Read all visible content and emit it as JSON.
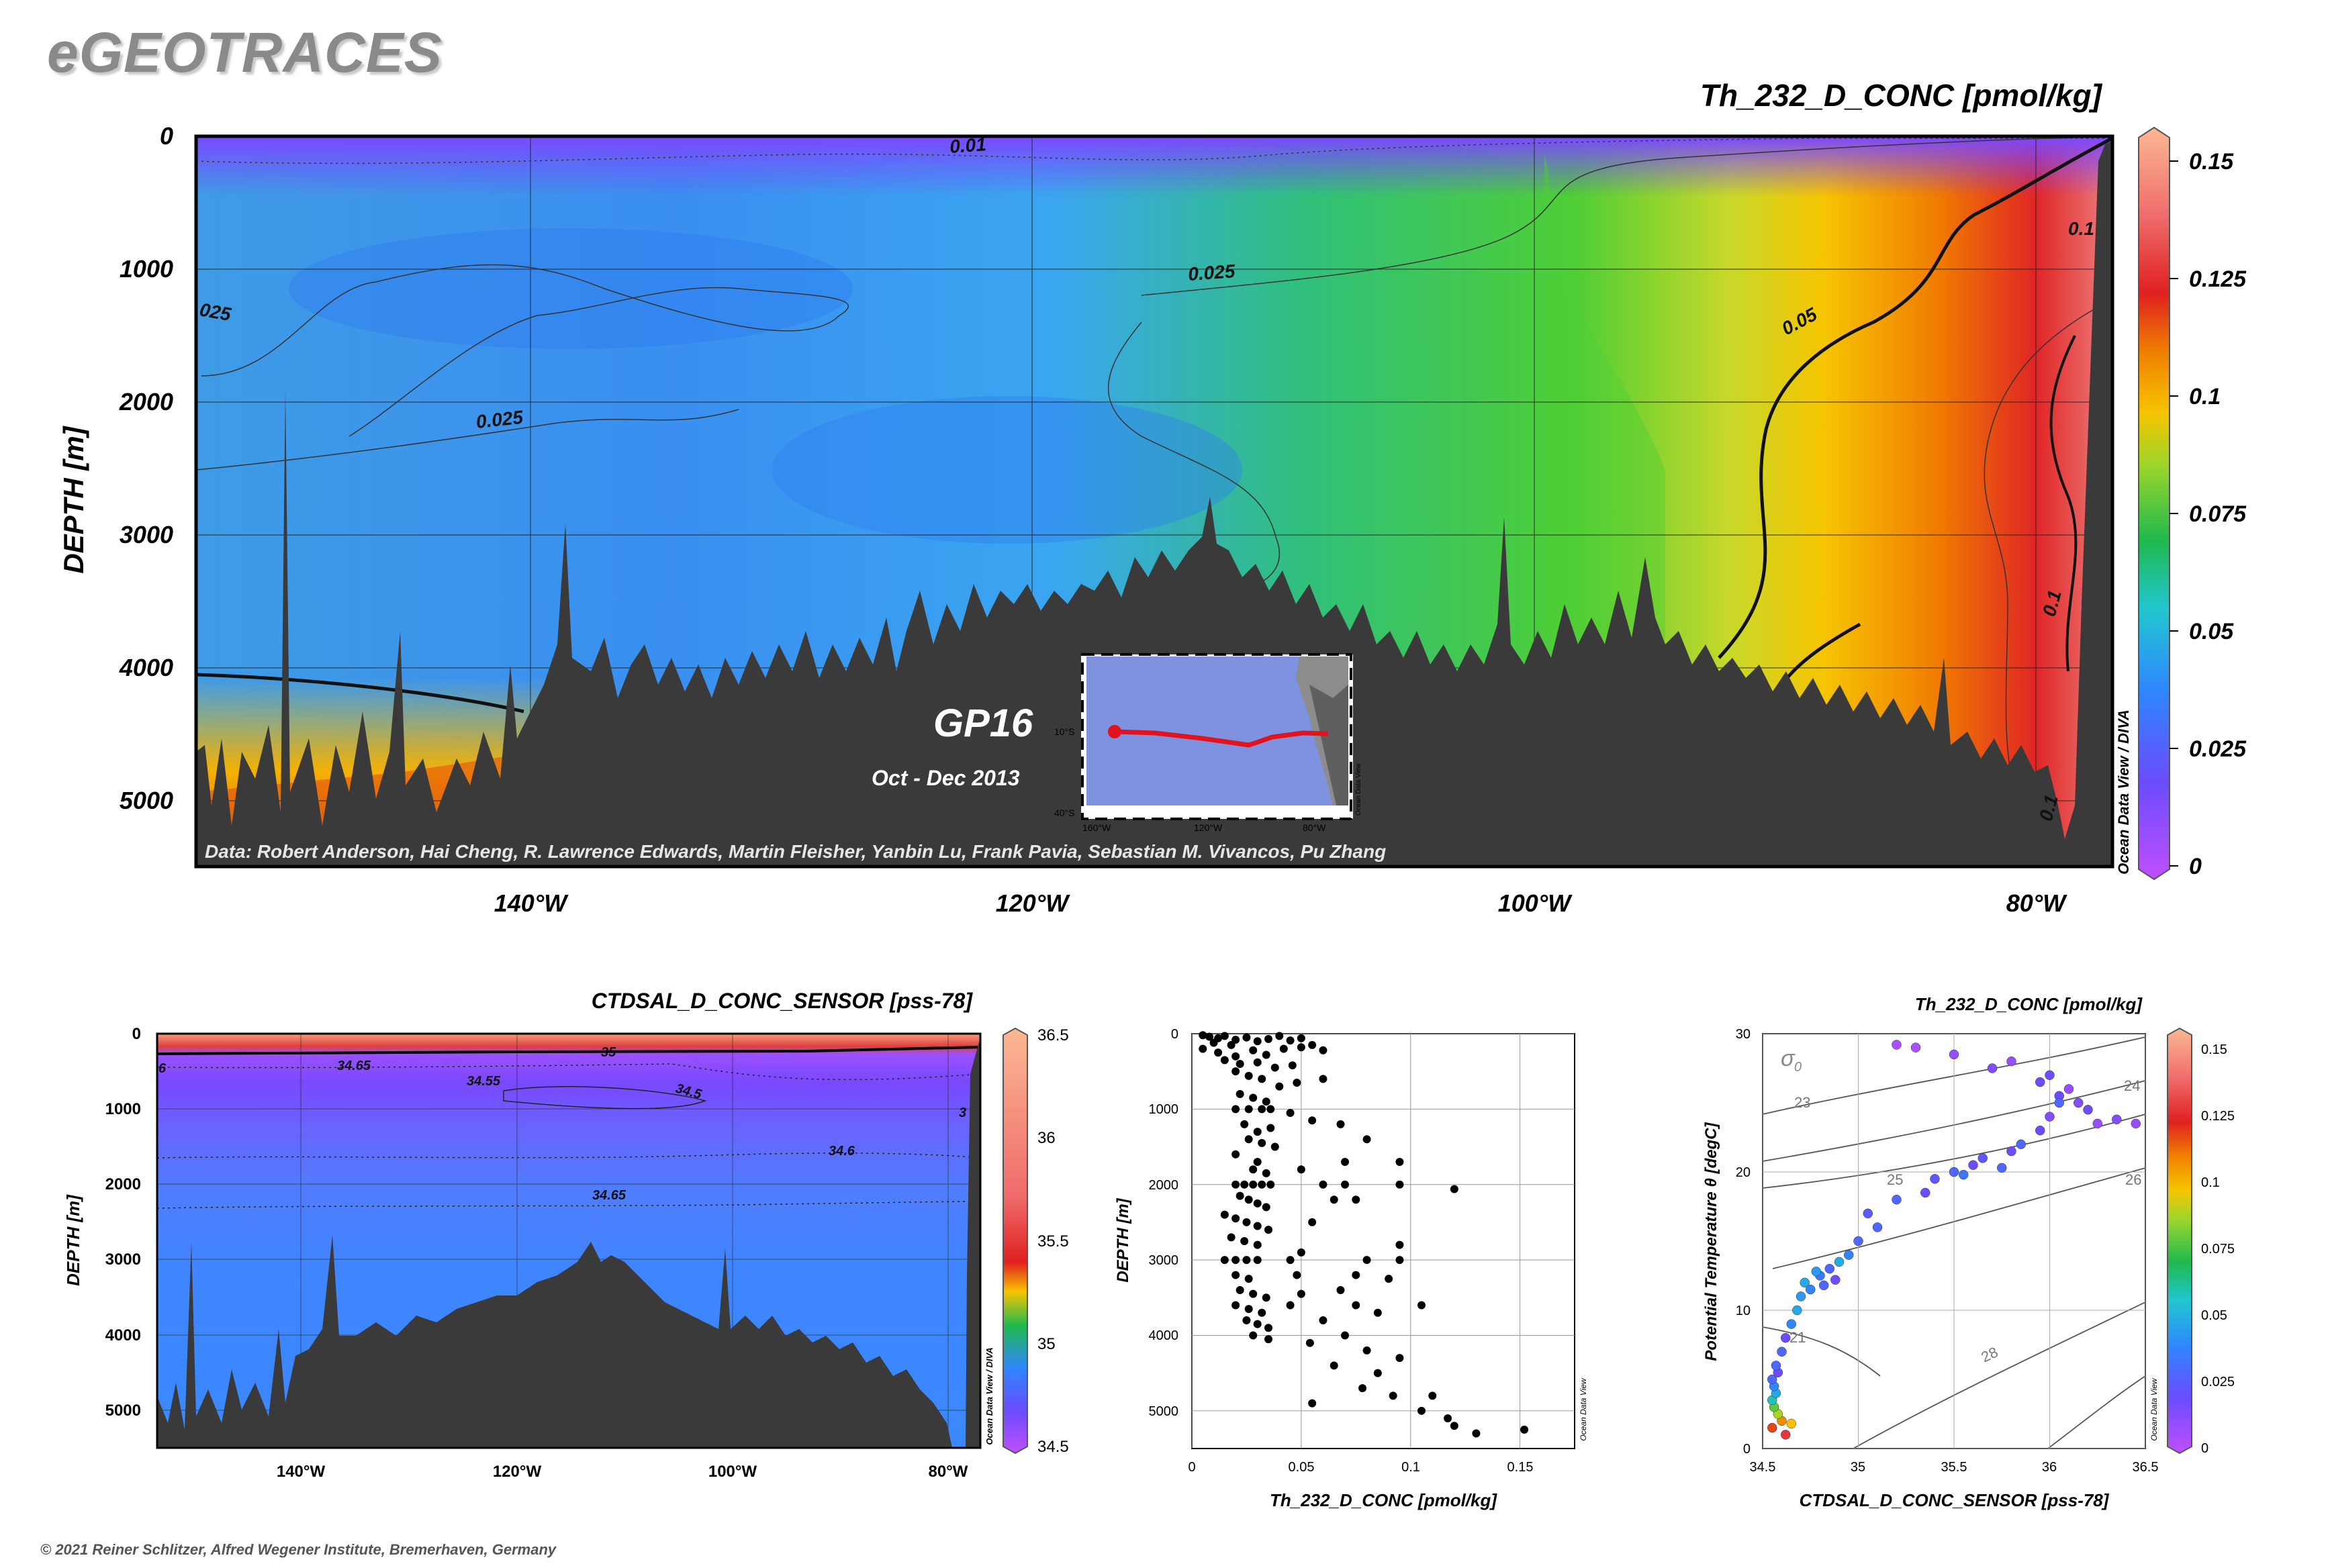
{
  "header": {
    "logo": "eGEOTRACES"
  },
  "footer": {
    "copyright": "© 2021 Reiner Schlitzer, Alfred Wegener Institute, Bremerhaven, Germany"
  },
  "colors": {
    "background": "#ffffff",
    "logo": "#8a8a8a",
    "seafloor": "#3a3a3a",
    "cruise_track": "#e0141e",
    "frame": "#000000"
  },
  "chart_data": [
    {
      "type": "heatmap",
      "title": "Th_232_D_CONC [pmol/kg]",
      "ylabel": "DEPTH [m]",
      "xlabel": "",
      "x_ticks": [
        "140°W",
        "120°W",
        "100°W",
        "80°W"
      ],
      "x_tick_values": [
        -140,
        -120,
        -100,
        -80
      ],
      "xlim": [
        -153.5,
        -77.5
      ],
      "y_ticks": [
        "0",
        "1000",
        "2000",
        "3000",
        "4000",
        "5000"
      ],
      "y_tick_values": [
        0,
        1000,
        2000,
        3000,
        4000,
        5000
      ],
      "ylim": [
        0,
        5500
      ],
      "colorbar": {
        "ticks": [
          "0",
          "0.025",
          "0.05",
          "0.075",
          "0.1",
          "0.125",
          "0.15"
        ],
        "values": [
          0,
          0.025,
          0.05,
          0.075,
          0.1,
          0.125,
          0.15
        ],
        "range": [
          0,
          0.16
        ]
      },
      "contour_labels": [
        "0.01",
        "0.025",
        "0.025",
        "025",
        "0.05",
        "0.1",
        "0.1",
        "0.1"
      ],
      "section_label": "GP16",
      "date_label": "Oct - Dec 2013",
      "credits": "Data: Robert Anderson, Hai Cheng, R. Lawrence Edwards, Martin Fleisher, Yanbin Lu, Frank Pavia, Sebastian M. Vivancos, Pu Zhang",
      "side_label": "Ocean Data View / DIVA",
      "inset": {
        "lat_ticks": [
          "10°S",
          "40°S"
        ],
        "lon_ticks": [
          "160°W",
          "120°W",
          "80°W"
        ],
        "credit": "Ocean Data View"
      }
    },
    {
      "type": "heatmap",
      "title": "CTDSAL_D_CONC_SENSOR [pss-78]",
      "ylabel": "DEPTH [m]",
      "xlabel": "",
      "x_ticks": [
        "140°W",
        "120°W",
        "100°W",
        "80°W"
      ],
      "x_tick_values": [
        -140,
        -120,
        -100,
        -80
      ],
      "xlim": [
        -153.5,
        -77.5
      ],
      "y_ticks": [
        "0",
        "1000",
        "2000",
        "3000",
        "4000",
        "5000"
      ],
      "y_tick_values": [
        0,
        1000,
        2000,
        3000,
        4000,
        5000
      ],
      "ylim": [
        0,
        5500
      ],
      "colorbar": {
        "ticks": [
          "34.5",
          "35",
          "35.5",
          "36",
          "36.5"
        ],
        "values": [
          34.5,
          35,
          35.5,
          36,
          36.5
        ],
        "range": [
          34.5,
          36.5
        ]
      },
      "contour_labels": [
        "34.65",
        "34.55",
        "34.5",
        "34.6",
        "34.65",
        "35",
        "3",
        "6"
      ],
      "side_label": "Ocean Data View / DIVA"
    },
    {
      "type": "scatter",
      "title": "",
      "xlabel": "Th_232_D_CONC [pmol/kg]",
      "ylabel": "DEPTH [m]",
      "xlim": [
        0,
        0.175
      ],
      "ylim": [
        0,
        5500
      ],
      "x_ticks": [
        "0",
        "0.05",
        "0.1",
        "0.15"
      ],
      "x_tick_values": [
        0,
        0.05,
        0.1,
        0.15
      ],
      "y_ticks": [
        "0",
        "1000",
        "2000",
        "3000",
        "4000",
        "5000"
      ],
      "y_tick_values": [
        0,
        1000,
        2000,
        3000,
        4000,
        5000
      ],
      "side_label": "Ocean Data View",
      "points": [
        [
          0.005,
          20
        ],
        [
          0.008,
          40
        ],
        [
          0.012,
          60
        ],
        [
          0.015,
          30
        ],
        [
          0.02,
          80
        ],
        [
          0.01,
          120
        ],
        [
          0.018,
          150
        ],
        [
          0.025,
          50
        ],
        [
          0.03,
          100
        ],
        [
          0.035,
          70
        ],
        [
          0.04,
          30
        ],
        [
          0.045,
          90
        ],
        [
          0.05,
          60
        ],
        [
          0.005,
          200
        ],
        [
          0.012,
          250
        ],
        [
          0.02,
          300
        ],
        [
          0.028,
          220
        ],
        [
          0.034,
          280
        ],
        [
          0.042,
          200
        ],
        [
          0.05,
          180
        ],
        [
          0.055,
          150
        ],
        [
          0.06,
          220
        ],
        [
          0.015,
          350
        ],
        [
          0.022,
          400
        ],
        [
          0.03,
          380
        ],
        [
          0.038,
          450
        ],
        [
          0.046,
          420
        ],
        [
          0.02,
          500
        ],
        [
          0.026,
          560
        ],
        [
          0.032,
          600
        ],
        [
          0.04,
          700
        ],
        [
          0.048,
          650
        ],
        [
          0.06,
          600
        ],
        [
          0.022,
          800
        ],
        [
          0.028,
          850
        ],
        [
          0.034,
          900
        ],
        [
          0.02,
          1000
        ],
        [
          0.026,
          1000
        ],
        [
          0.032,
          1000
        ],
        [
          0.036,
          1000
        ],
        [
          0.045,
          1050
        ],
        [
          0.055,
          1150
        ],
        [
          0.068,
          1200
        ],
        [
          0.08,
          1400
        ],
        [
          0.024,
          1200
        ],
        [
          0.03,
          1300
        ],
        [
          0.036,
          1250
        ],
        [
          0.026,
          1400
        ],
        [
          0.032,
          1450
        ],
        [
          0.038,
          1500
        ],
        [
          0.02,
          1600
        ],
        [
          0.03,
          1700
        ],
        [
          0.07,
          1700
        ],
        [
          0.095,
          1700
        ],
        [
          0.028,
          1800
        ],
        [
          0.034,
          1850
        ],
        [
          0.05,
          1800
        ],
        [
          0.02,
          2000
        ],
        [
          0.024,
          2000
        ],
        [
          0.028,
          2000
        ],
        [
          0.032,
          2000
        ],
        [
          0.036,
          2000
        ],
        [
          0.06,
          2000
        ],
        [
          0.07,
          2000
        ],
        [
          0.095,
          2000
        ],
        [
          0.12,
          2060
        ],
        [
          0.022,
          2150
        ],
        [
          0.026,
          2200
        ],
        [
          0.03,
          2250
        ],
        [
          0.034,
          2300
        ],
        [
          0.065,
          2200
        ],
        [
          0.075,
          2200
        ],
        [
          0.015,
          2400
        ],
        [
          0.02,
          2450
        ],
        [
          0.025,
          2500
        ],
        [
          0.03,
          2550
        ],
        [
          0.035,
          2600
        ],
        [
          0.055,
          2500
        ],
        [
          0.018,
          2700
        ],
        [
          0.024,
          2750
        ],
        [
          0.03,
          2800
        ],
        [
          0.095,
          2800
        ],
        [
          0.05,
          2900
        ],
        [
          0.015,
          3000
        ],
        [
          0.02,
          3000
        ],
        [
          0.025,
          3000
        ],
        [
          0.03,
          3000
        ],
        [
          0.045,
          3000
        ],
        [
          0.08,
          3000
        ],
        [
          0.095,
          3000
        ],
        [
          0.02,
          3200
        ],
        [
          0.026,
          3250
        ],
        [
          0.048,
          3200
        ],
        [
          0.075,
          3200
        ],
        [
          0.09,
          3250
        ],
        [
          0.022,
          3400
        ],
        [
          0.028,
          3450
        ],
        [
          0.034,
          3500
        ],
        [
          0.05,
          3450
        ],
        [
          0.068,
          3400
        ],
        [
          0.02,
          3600
        ],
        [
          0.026,
          3650
        ],
        [
          0.032,
          3700
        ],
        [
          0.045,
          3600
        ],
        [
          0.075,
          3600
        ],
        [
          0.025,
          3800
        ],
        [
          0.03,
          3850
        ],
        [
          0.035,
          3900
        ],
        [
          0.06,
          3800
        ],
        [
          0.085,
          3700
        ],
        [
          0.105,
          3600
        ],
        [
          0.028,
          4000
        ],
        [
          0.035,
          4050
        ],
        [
          0.054,
          4100
        ],
        [
          0.07,
          4000
        ],
        [
          0.08,
          4200
        ],
        [
          0.095,
          4300
        ],
        [
          0.065,
          4400
        ],
        [
          0.085,
          4500
        ],
        [
          0.078,
          4700
        ],
        [
          0.092,
          4800
        ],
        [
          0.055,
          4900
        ],
        [
          0.11,
          4800
        ],
        [
          0.105,
          5000
        ],
        [
          0.117,
          5100
        ],
        [
          0.12,
          5200
        ],
        [
          0.13,
          5300
        ],
        [
          0.152,
          5250
        ]
      ]
    },
    {
      "type": "scatter",
      "title": "Th_232_D_CONC [pmol/kg]",
      "xlabel": "CTDSAL_D_CONC_SENSOR [pss-78]",
      "ylabel": "Potential Temperature θ [degC]",
      "xlim": [
        34.5,
        36.5
      ],
      "ylim": [
        0,
        30
      ],
      "x_ticks": [
        "34.5",
        "35",
        "35.5",
        "36",
        "36.5"
      ],
      "x_tick_values": [
        34.5,
        35,
        35.5,
        36,
        36.5
      ],
      "y_ticks": [
        "0",
        "10",
        "20",
        "30"
      ],
      "y_tick_values": [
        0,
        10,
        20,
        30
      ],
      "isopycnal_symbol": "σ",
      "isopycnal_subscript": "0",
      "isopycnal_labels": [
        "21",
        "23",
        "24",
        "25",
        "26",
        "28"
      ],
      "colorbar": {
        "ticks": [
          "0",
          "0.025",
          "0.05",
          "0.075",
          "0.1",
          "0.125",
          "0.15"
        ],
        "values": [
          0,
          0.025,
          0.05,
          0.075,
          0.1,
          0.125,
          0.15
        ],
        "range": [
          0,
          0.16
        ]
      },
      "side_label": "Ocean Data View",
      "points": [
        [
          34.55,
          1.5,
          0.12
        ],
        [
          34.6,
          2.0,
          0.11
        ],
        [
          34.62,
          1.0,
          0.13
        ],
        [
          34.65,
          1.8,
          0.1
        ],
        [
          34.58,
          2.5,
          0.09
        ],
        [
          34.56,
          3.0,
          0.08
        ],
        [
          34.55,
          3.5,
          0.06
        ],
        [
          34.57,
          4.0,
          0.05
        ],
        [
          34.56,
          4.5,
          0.04
        ],
        [
          34.55,
          5.0,
          0.03
        ],
        [
          34.58,
          5.5,
          0.02
        ],
        [
          34.57,
          6.0,
          0.03
        ],
        [
          34.6,
          7.0,
          0.03
        ],
        [
          34.62,
          8.0,
          0.02
        ],
        [
          34.65,
          9.0,
          0.04
        ],
        [
          34.68,
          10.0,
          0.05
        ],
        [
          34.7,
          11.0,
          0.045
        ],
        [
          34.75,
          11.5,
          0.04
        ],
        [
          34.8,
          12.5,
          0.035
        ],
        [
          34.85,
          13.0,
          0.03
        ],
        [
          34.9,
          13.5,
          0.05
        ],
        [
          34.95,
          14.0,
          0.04
        ],
        [
          34.72,
          12.0,
          0.05
        ],
        [
          34.78,
          12.8,
          0.045
        ],
        [
          34.82,
          11.8,
          0.03
        ],
        [
          34.88,
          12.2,
          0.02
        ],
        [
          35.0,
          15.0,
          0.03
        ],
        [
          35.05,
          17.0,
          0.025
        ],
        [
          35.1,
          16.0,
          0.03
        ],
        [
          35.2,
          18.0,
          0.03
        ],
        [
          35.35,
          18.5,
          0.02
        ],
        [
          35.4,
          19.5,
          0.025
        ],
        [
          35.5,
          20.0,
          0.03
        ],
        [
          35.55,
          19.8,
          0.035
        ],
        [
          35.6,
          20.5,
          0.02
        ],
        [
          35.65,
          21.0,
          0.025
        ],
        [
          35.75,
          20.3,
          0.03
        ],
        [
          35.8,
          21.5,
          0.02
        ],
        [
          35.85,
          22.0,
          0.03
        ],
        [
          35.95,
          23.0,
          0.02
        ],
        [
          36.0,
          24.0,
          0.015
        ],
        [
          36.05,
          25.5,
          0.02
        ],
        [
          36.1,
          26.0,
          0.01
        ],
        [
          36.15,
          25.0,
          0.015
        ],
        [
          36.2,
          24.5,
          0.02
        ],
        [
          36.25,
          23.5,
          0.01
        ],
        [
          36.35,
          23.8,
          0.015
        ],
        [
          36.45,
          23.5,
          0.01
        ],
        [
          35.7,
          27.5,
          0.015
        ],
        [
          35.8,
          28.0,
          0.01
        ],
        [
          36.0,
          27.0,
          0.02
        ],
        [
          35.5,
          28.5,
          0.01
        ],
        [
          35.3,
          29.0,
          0.005
        ],
        [
          35.2,
          29.2,
          0.005
        ],
        [
          36.05,
          25.0,
          0.03
        ],
        [
          35.95,
          26.5,
          0.02
        ]
      ]
    }
  ]
}
